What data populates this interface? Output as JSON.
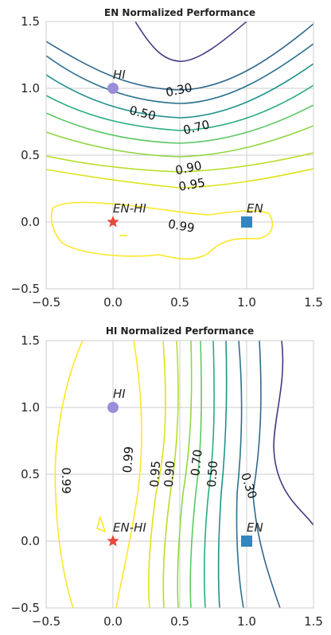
{
  "chart_data": [
    {
      "type": "contour",
      "title": "EN Normalized Performance",
      "xlim": [
        -0.5,
        1.5
      ],
      "ylim": [
        -0.5,
        1.5
      ],
      "xticks": [
        "−0.5",
        "0.0",
        "0.5",
        "1.0",
        "1.5"
      ],
      "yticks": [
        "−0.5",
        "0.0",
        "0.5",
        "1.0",
        "1.5"
      ],
      "grid": true,
      "levels": [
        {
          "value": "0.10",
          "color": "#443a83"
        },
        {
          "value": "0.30",
          "color": "#31688e"
        },
        {
          "value": "0.40",
          "color": "#2c728e"
        },
        {
          "value": "0.50",
          "color": "#21918c"
        },
        {
          "value": "0.60",
          "color": "#27ad81"
        },
        {
          "value": "0.70",
          "color": "#5cc863"
        },
        {
          "value": "0.80",
          "color": "#90d743"
        },
        {
          "value": "0.90",
          "color": "#b8de29"
        },
        {
          "value": "0.95",
          "color": "#dde318"
        },
        {
          "value": "0.99",
          "color": "#fde725"
        }
      ],
      "contour_labels": [
        "0.30",
        "0.50",
        "0.70",
        "0.90",
        "0.95",
        "0.99"
      ],
      "points": [
        {
          "label": "HI",
          "x": 0.0,
          "y": 1.0,
          "marker": "circle",
          "color": "#9b8ed8"
        },
        {
          "label": "EN-HI",
          "x": 0.0,
          "y": 0.0,
          "marker": "star",
          "color": "#e8473c"
        },
        {
          "label": "EN",
          "x": 1.0,
          "y": 0.0,
          "marker": "square",
          "color": "#2f86c0"
        }
      ]
    },
    {
      "type": "contour",
      "title": "HI Normalized Performance",
      "xlim": [
        -0.5,
        1.5
      ],
      "ylim": [
        -0.5,
        1.5
      ],
      "xticks": [
        "−0.5",
        "0.0",
        "0.5",
        "1.0",
        "1.5"
      ],
      "yticks": [
        "−0.5",
        "0.0",
        "0.5",
        "1.0",
        "1.5"
      ],
      "grid": true,
      "levels": [
        {
          "value": "0.10",
          "color": "#443a83"
        },
        {
          "value": "0.30",
          "color": "#31688e"
        },
        {
          "value": "0.40",
          "color": "#2c728e"
        },
        {
          "value": "0.50",
          "color": "#21918c"
        },
        {
          "value": "0.60",
          "color": "#27ad81"
        },
        {
          "value": "0.70",
          "color": "#5cc863"
        },
        {
          "value": "0.80",
          "color": "#90d743"
        },
        {
          "value": "0.90",
          "color": "#b8de29"
        },
        {
          "value": "0.95",
          "color": "#dde318"
        },
        {
          "value": "0.99",
          "color": "#fde725"
        }
      ],
      "contour_labels": [
        "0.99",
        "0.99",
        "0.95",
        "0.90",
        "0.70",
        "0.50",
        "0.30"
      ],
      "points": [
        {
          "label": "HI",
          "x": 0.0,
          "y": 1.0,
          "marker": "circle",
          "color": "#9b8ed8"
        },
        {
          "label": "EN-HI",
          "x": 0.0,
          "y": 0.0,
          "marker": "star",
          "color": "#e8473c"
        },
        {
          "label": "EN",
          "x": 1.0,
          "y": 0.0,
          "marker": "square",
          "color": "#2f86c0"
        }
      ]
    }
  ]
}
